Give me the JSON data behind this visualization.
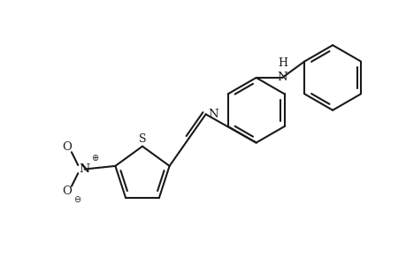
{
  "background": "#ffffff",
  "line_color": "#1a1a1a",
  "line_width": 1.5,
  "figure_size": [
    4.6,
    3.0
  ],
  "dpi": 100,
  "xlim": [
    -2.3,
    2.7
  ],
  "ylim": [
    -1.6,
    1.6
  ]
}
